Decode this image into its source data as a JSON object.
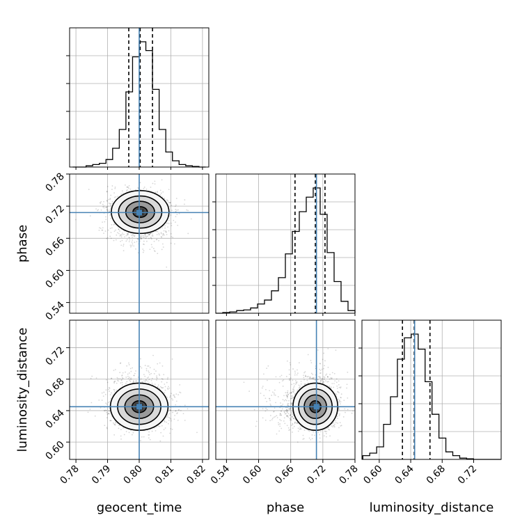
{
  "chart_data": {
    "type": "corner",
    "parameters": [
      "geocent_time",
      "phase",
      "luminosity_distance"
    ],
    "truths": {
      "geocent_time": 0.8,
      "phase": 0.708,
      "luminosity_distance": 0.645
    },
    "truth_color": "#4682b4",
    "grid": true,
    "axes": {
      "geocent_time": {
        "range": [
          0.778,
          0.822
        ],
        "ticks": [
          0.78,
          0.79,
          0.8,
          0.81,
          0.82
        ],
        "tick_labels": [
          "0.78",
          "0.79",
          "0.80",
          "0.81",
          "0.82"
        ],
        "label": "geocent_time"
      },
      "phase": {
        "range": [
          0.52,
          0.78
        ],
        "ticks": [
          0.54,
          0.6,
          0.66,
          0.72,
          0.78
        ],
        "tick_labels": [
          "0.54",
          "0.60",
          "0.66",
          "0.72",
          "0.78"
        ],
        "label": "phase"
      },
      "luminosity_distance": {
        "range": [
          0.578,
          0.755
        ],
        "ticks": [
          0.6,
          0.64,
          0.68,
          0.72
        ],
        "tick_labels": [
          "0.60",
          "0.64",
          "0.68",
          "0.72"
        ],
        "label": "luminosity_distance"
      }
    },
    "marginals": [
      {
        "parameter": "geocent_time",
        "quantiles": [
          0.7967,
          0.8003,
          0.8042
        ],
        "edges": [
          0.779,
          0.7811,
          0.7832,
          0.7853,
          0.7874,
          0.7895,
          0.7916,
          0.7937,
          0.7958,
          0.7979,
          0.8,
          0.8021,
          0.8042,
          0.8063,
          0.8084,
          0.8105,
          0.8126,
          0.8147,
          0.8168,
          0.8189,
          0.821
        ],
        "counts": [
          0.0,
          0.0,
          0.01,
          0.02,
          0.03,
          0.06,
          0.15,
          0.3,
          0.6,
          0.88,
          1.0,
          0.93,
          0.62,
          0.3,
          0.12,
          0.05,
          0.02,
          0.01,
          0.005,
          0.0
        ]
      },
      {
        "parameter": "phase",
        "quantiles": [
          0.668,
          0.706,
          0.724
        ],
        "edges": [
          0.52,
          0.533,
          0.546,
          0.559,
          0.572,
          0.585,
          0.598,
          0.611,
          0.624,
          0.637,
          0.65,
          0.663,
          0.676,
          0.689,
          0.702,
          0.715,
          0.728,
          0.741,
          0.754,
          0.767,
          0.78
        ],
        "counts": [
          0.0,
          0.005,
          0.01,
          0.02,
          0.025,
          0.04,
          0.07,
          0.1,
          0.17,
          0.27,
          0.45,
          0.62,
          0.77,
          0.88,
          0.95,
          0.75,
          0.46,
          0.24,
          0.09,
          0.02
        ]
      },
      {
        "parameter": "luminosity_distance",
        "quantiles": [
          0.6295,
          0.6445,
          0.6645
        ],
        "edges": [
          0.5791,
          0.5879,
          0.5967,
          0.6055,
          0.6143,
          0.6231,
          0.6319,
          0.6407,
          0.6495,
          0.6583,
          0.6671,
          0.6759,
          0.6847,
          0.6935,
          0.7023,
          0.7111,
          0.7199,
          0.7287,
          0.7375,
          0.7463,
          0.7551
        ],
        "counts": [
          0.03,
          0.05,
          0.1,
          0.28,
          0.5,
          0.8,
          0.97,
          1.0,
          0.88,
          0.62,
          0.36,
          0.17,
          0.06,
          0.03,
          0.01,
          0.005,
          0.0,
          0.0,
          0.0,
          0.0
        ]
      }
    ],
    "joints": [
      {
        "x": "geocent_time",
        "y": "phase",
        "center": [
          0.8003,
          0.709
        ],
        "sigma": [
          0.0048,
          0.02
        ],
        "rho": 0.0,
        "skew_y": -1
      },
      {
        "x": "geocent_time",
        "y": "luminosity_distance",
        "center": [
          0.8,
          0.645
        ],
        "sigma": [
          0.0048,
          0.015
        ],
        "rho": 0.0,
        "skew_y": 1
      },
      {
        "x": "phase",
        "y": "luminosity_distance",
        "center": [
          0.706,
          0.645
        ],
        "sigma": [
          0.022,
          0.015
        ],
        "rho": 0.0,
        "skew_y": 1,
        "skew_x": -1
      }
    ]
  }
}
